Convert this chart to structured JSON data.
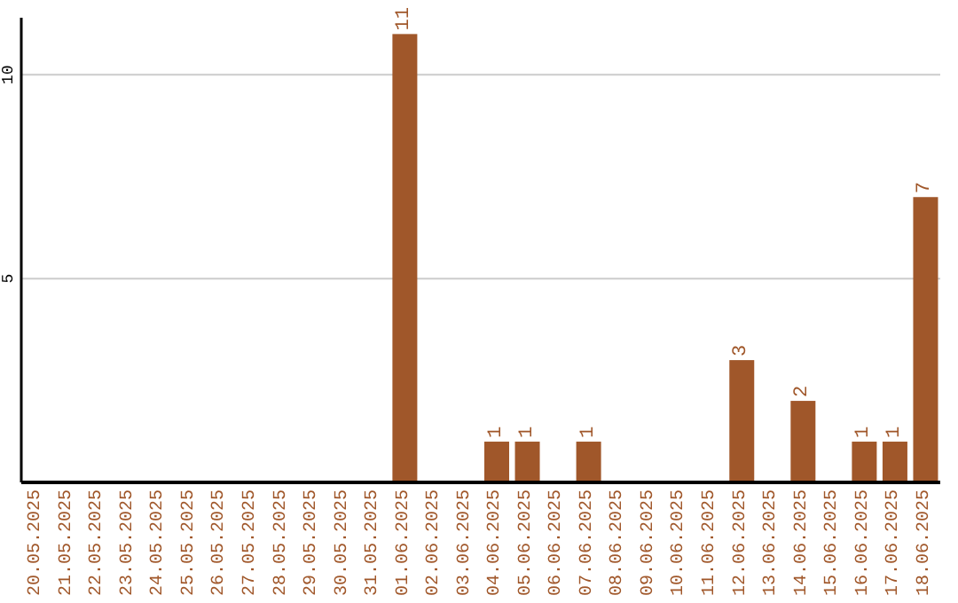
{
  "chart_data": {
    "type": "bar",
    "categories": [
      "20.05.2025",
      "21.05.2025",
      "22.05.2025",
      "23.05.2025",
      "24.05.2025",
      "25.05.2025",
      "26.05.2025",
      "27.05.2025",
      "28.05.2025",
      "29.05.2025",
      "30.05.2025",
      "31.05.2025",
      "01.06.2025",
      "02.06.2025",
      "03.06.2025",
      "04.06.2025",
      "05.06.2025",
      "06.06.2025",
      "07.06.2025",
      "08.06.2025",
      "09.06.2025",
      "10.06.2025",
      "11.06.2025",
      "12.06.2025",
      "13.06.2025",
      "14.06.2025",
      "15.06.2025",
      "16.06.2025",
      "17.06.2025",
      "18.06.2025"
    ],
    "values": [
      0,
      0,
      0,
      0,
      0,
      0,
      0,
      0,
      0,
      0,
      0,
      0,
      11,
      0,
      0,
      1,
      1,
      0,
      1,
      0,
      0,
      0,
      0,
      3,
      0,
      2,
      0,
      1,
      1,
      7
    ],
    "value_labels": [
      null,
      null,
      null,
      null,
      null,
      null,
      null,
      null,
      null,
      null,
      null,
      null,
      "11",
      null,
      null,
      "1",
      "1",
      null,
      "1",
      null,
      null,
      null,
      null,
      "3",
      null,
      "2",
      null,
      "1",
      "1",
      "7"
    ],
    "color": "#a0572a",
    "ylim": [
      0,
      11.4
    ],
    "yticks": [
      5,
      10
    ],
    "grid": "y"
  }
}
